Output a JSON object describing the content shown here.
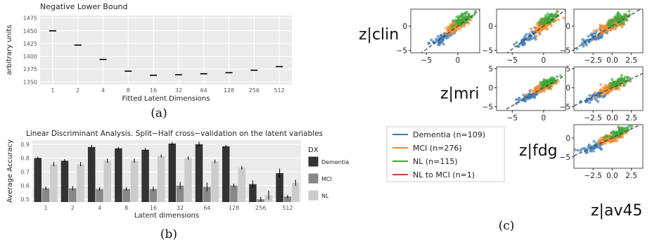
{
  "captions": {
    "a": "(a)",
    "b": "(b)",
    "c": "(c)"
  },
  "chart_data": [
    {
      "type": "scatter",
      "title": "Negative Lower Bound",
      "xlabel": "Fitted Latent Dimensions",
      "ylabel": "arbitrary units",
      "categories": [
        "1",
        "2",
        "4",
        "8",
        "16",
        "32",
        "64",
        "128",
        "256",
        "512"
      ],
      "values": [
        1450,
        1422,
        1394,
        1371,
        1363,
        1364,
        1366,
        1368,
        1373,
        1380
      ],
      "yticks": [
        "1475",
        "1450",
        "1425",
        "1400",
        "1375",
        "1350"
      ],
      "ylim": [
        1345,
        1480
      ],
      "grid": true
    },
    {
      "type": "bar",
      "title": "Linear Discriminant Analysis. Split−Half cross−validation on the latent variables",
      "xlabel": "Latent dimensions",
      "ylabel": "Average Accuracy",
      "categories": [
        "1",
        "2",
        "4",
        "8",
        "16",
        "32",
        "64",
        "128",
        "256",
        "512"
      ],
      "legend_title": "DX",
      "series": [
        {
          "name": "Dementia",
          "color": "#333333",
          "values": [
            0.8,
            0.78,
            0.88,
            0.87,
            0.86,
            0.905,
            0.9,
            0.885,
            0.61,
            0.69
          ],
          "errors": [
            0.003,
            0.005,
            0.008,
            0.003,
            0.005,
            0.003,
            0.01,
            0.003,
            0.02,
            0.025
          ]
        },
        {
          "name": "MCI",
          "color": "#888888",
          "values": [
            0.58,
            0.58,
            0.575,
            0.575,
            0.575,
            0.6,
            0.59,
            0.6,
            0.5,
            0.52
          ],
          "errors": [
            0.005,
            0.008,
            0.005,
            0.005,
            0.008,
            0.018,
            0.025,
            0.005,
            0.01,
            0.005
          ]
        },
        {
          "name": "NL",
          "color": "#cccccc",
          "values": [
            0.755,
            0.755,
            0.78,
            0.78,
            0.815,
            0.8,
            0.775,
            0.73,
            0.53,
            0.62
          ],
          "errors": [
            0.008,
            0.008,
            0.008,
            0.008,
            0.003,
            0.005,
            0.005,
            0.005,
            0.025,
            0.015
          ]
        }
      ],
      "yticks": [
        "0.9",
        "0.8",
        "0.7",
        "0.6",
        "0.5"
      ],
      "ylim": [
        0.48,
        0.93
      ],
      "legend_position": "right",
      "grid": true
    },
    {
      "type": "scatter",
      "description_labels": {
        "row_labels": [
          "z|clin",
          "z|mri",
          "z|fdg",
          "z|av45"
        ],
        "legend": [
          {
            "name": "Dementia (n=109)",
            "color": "#3b7bb8"
          },
          {
            "name": "MCI (n=276)",
            "color": "#f58a2e"
          },
          {
            "name": "NL (n=115)",
            "color": "#3aa93a"
          },
          {
            "name": "NL to MCI (n=1)",
            "color": "#d03a32"
          }
        ]
      },
      "panels": [
        {
          "row": 0,
          "col": 0,
          "yticks": [
            "0",
            "−5"
          ],
          "xticks": [
            "−5",
            "0"
          ],
          "xlim": [
            -7.5,
            3.5
          ],
          "ylim": [
            -5.5,
            3.5
          ]
        },
        {
          "row": 0,
          "col": 1,
          "yticks": [
            "0",
            "−5"
          ],
          "xticks": [
            "−5",
            "0"
          ],
          "xlim": [
            -7.5,
            3.5
          ],
          "ylim": [
            -5.5,
            3.5
          ]
        },
        {
          "row": 0,
          "col": 2,
          "yticks": [
            "0",
            "−5"
          ],
          "xticks": [
            "−2.5",
            "0.0",
            "2.5"
          ],
          "xlim": [
            -5,
            4
          ],
          "ylim": [
            -5.5,
            3.5
          ]
        },
        {
          "row": 1,
          "col": 1,
          "yticks": [
            "5",
            "0",
            "−5"
          ],
          "xticks": [
            "−5",
            "0"
          ],
          "xlim": [
            -7.5,
            3.5
          ],
          "ylim": [
            -6,
            5.5
          ]
        },
        {
          "row": 1,
          "col": 2,
          "yticks": [
            "5",
            "0",
            "−5"
          ],
          "xticks": [
            "−2.5",
            "0.0",
            "2.5"
          ],
          "xlim": [
            -5,
            4
          ],
          "ylim": [
            -6,
            5.5
          ]
        },
        {
          "row": 2,
          "col": 2,
          "yticks": [
            "0",
            "−5"
          ],
          "xticks": [
            "−2.5",
            "0.0",
            "2.5"
          ],
          "xlim": [
            -5,
            4
          ],
          "ylim": [
            -8,
            3.5
          ]
        }
      ]
    }
  ],
  "colors": {
    "dementia": "#3b7bb8",
    "mci": "#f58a2e",
    "nl": "#3aa93a",
    "conv": "#d03a32"
  }
}
